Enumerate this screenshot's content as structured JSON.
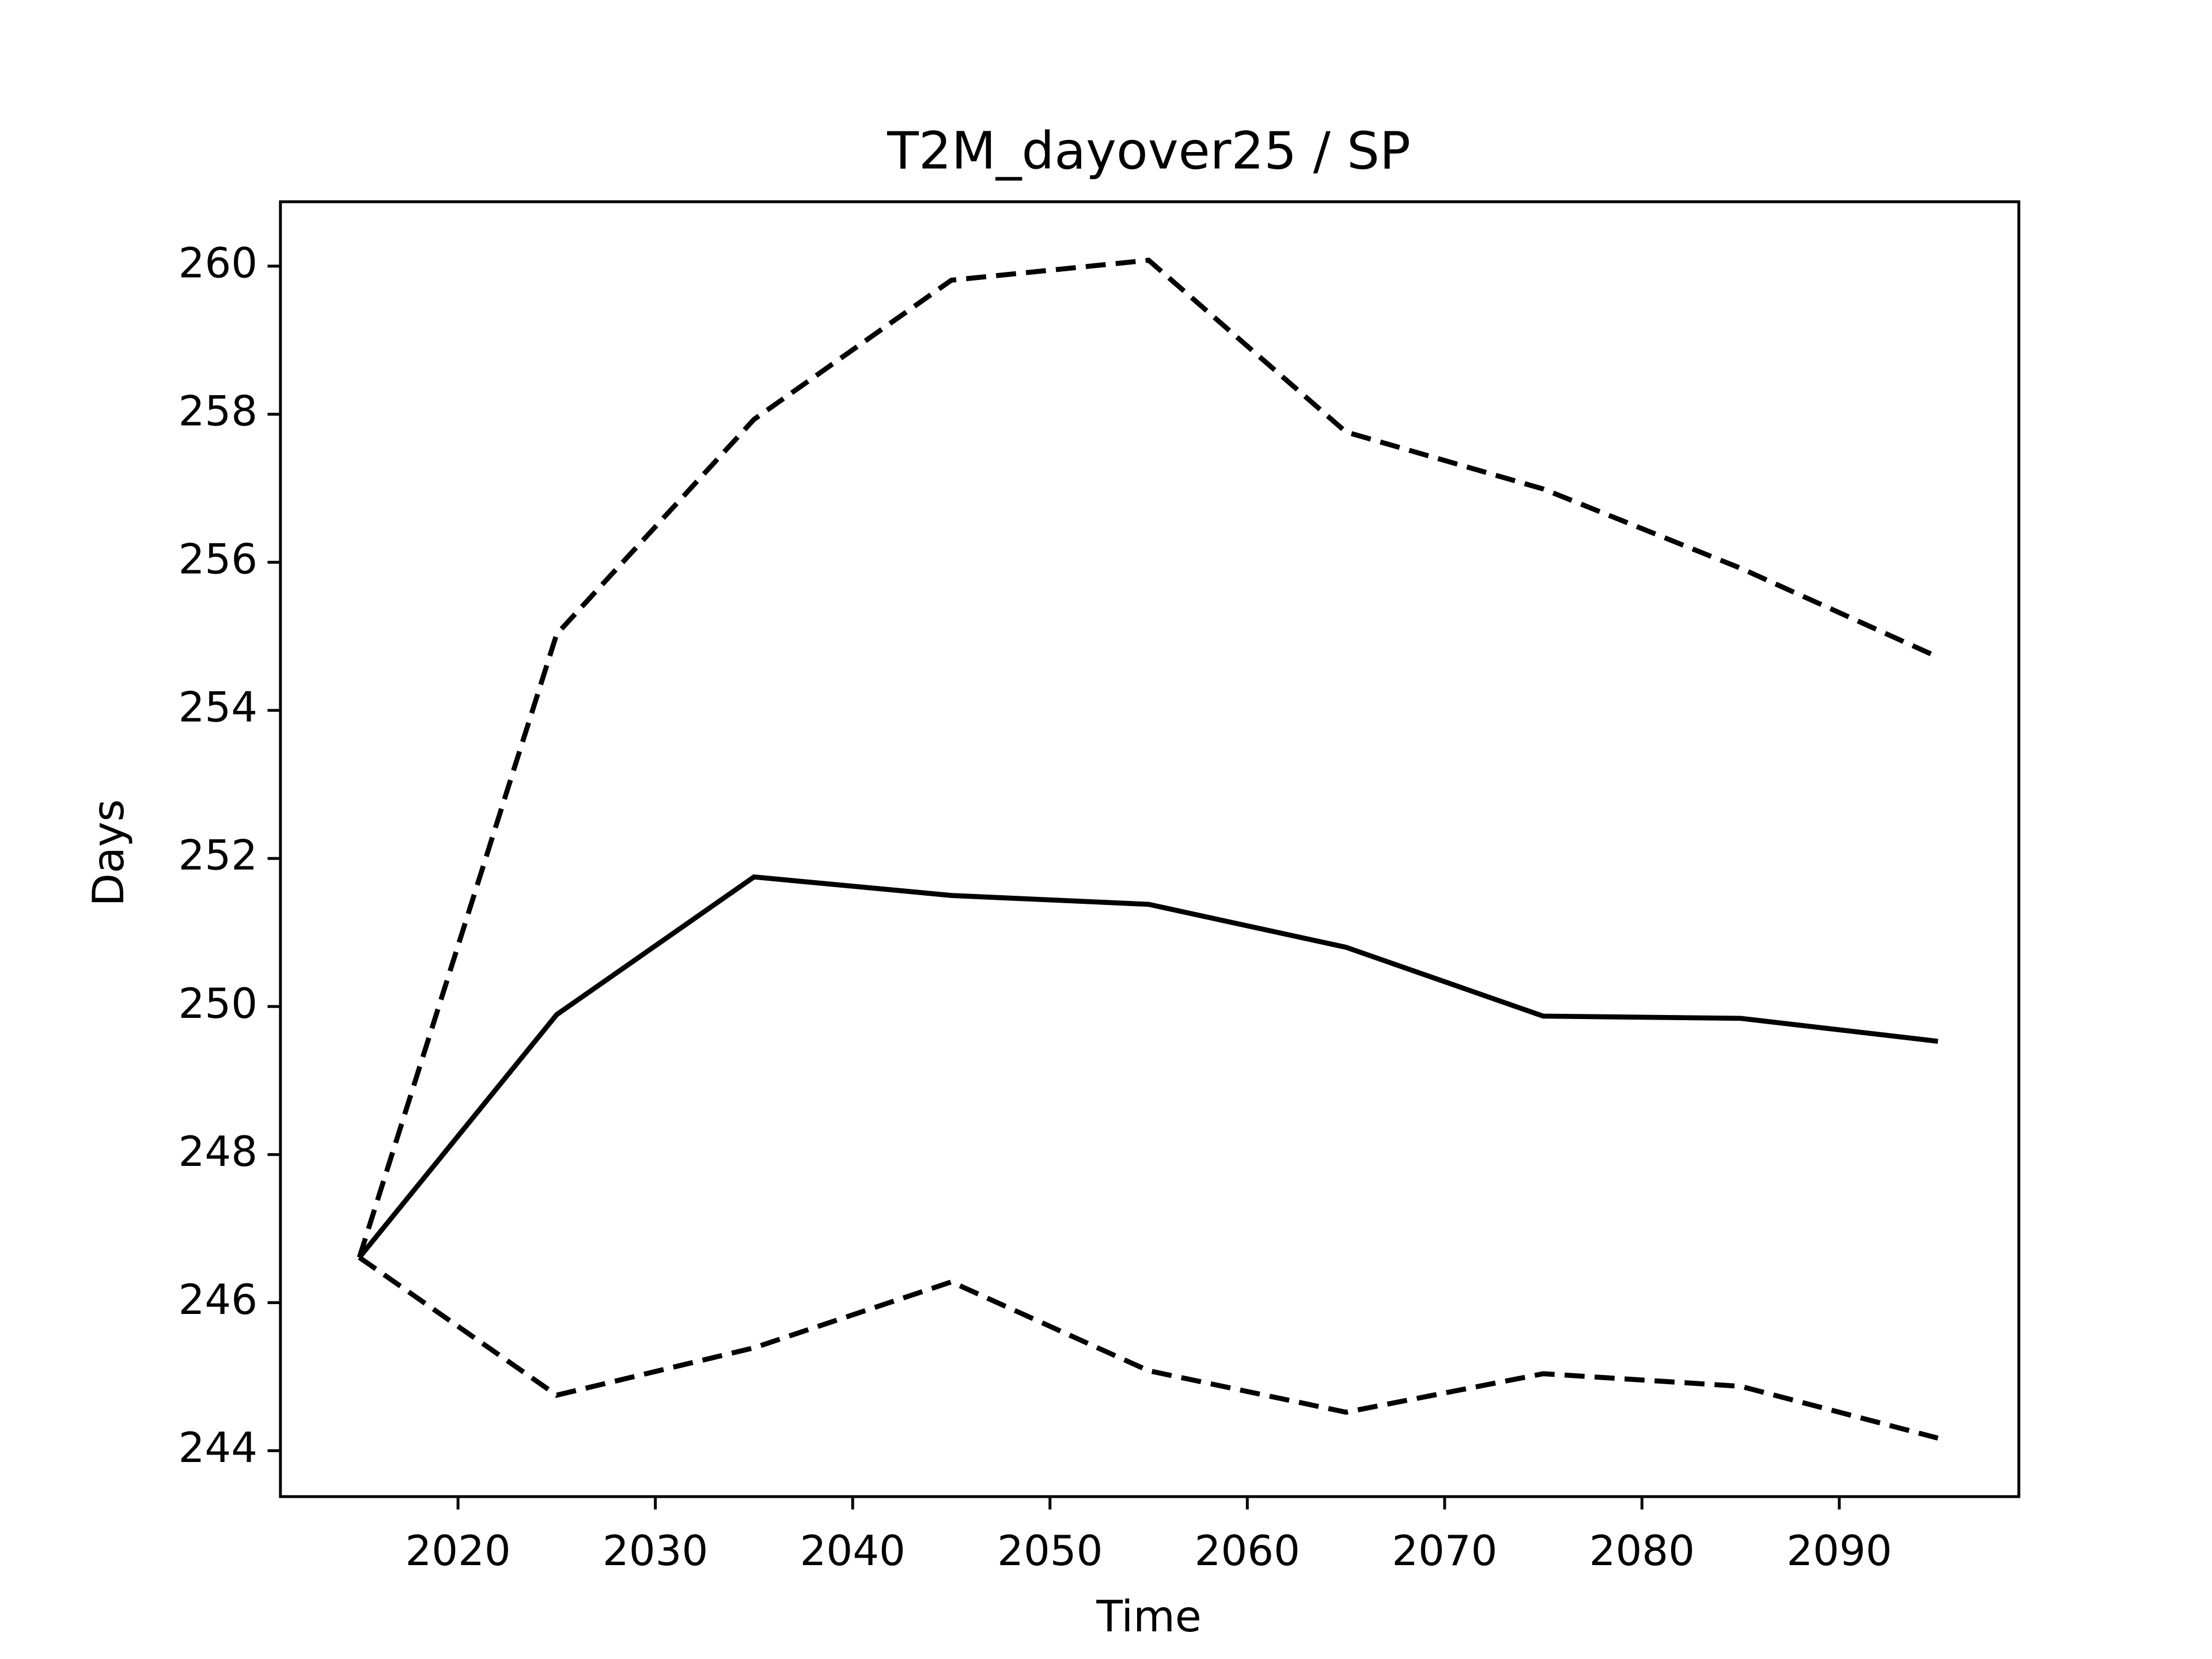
{
  "chart_data": {
    "type": "line",
    "title": "T2M_dayover25 / SP",
    "xlabel": "Time",
    "ylabel": "Days",
    "x": [
      2015,
      2025,
      2035,
      2045,
      2055,
      2065,
      2075,
      2085,
      2095
    ],
    "series": [
      {
        "color": "#000000",
        "style": "solid",
        "values": [
          246.61,
          249.89,
          251.75,
          251.5,
          251.38,
          250.8,
          249.87,
          249.84,
          249.53
        ]
      },
      {
        "color": "#000000",
        "style": "dashed",
        "values": [
          246.61,
          255.03,
          257.93,
          259.81,
          260.08,
          257.76,
          256.99,
          255.92,
          254.72
        ]
      },
      {
        "color": "#000000",
        "style": "dashed",
        "values": [
          246.61,
          244.75,
          245.39,
          246.28,
          245.08,
          244.52,
          245.04,
          244.87,
          244.17
        ]
      }
    ],
    "xlim": [
      2011,
      2099.1
    ],
    "ylim": [
      243.38,
      260.87
    ],
    "xticks": [
      2020,
      2030,
      2040,
      2050,
      2060,
      2070,
      2080,
      2090
    ],
    "yticks": [
      244,
      246,
      248,
      250,
      252,
      254,
      256,
      258,
      260
    ],
    "grid": false
  }
}
